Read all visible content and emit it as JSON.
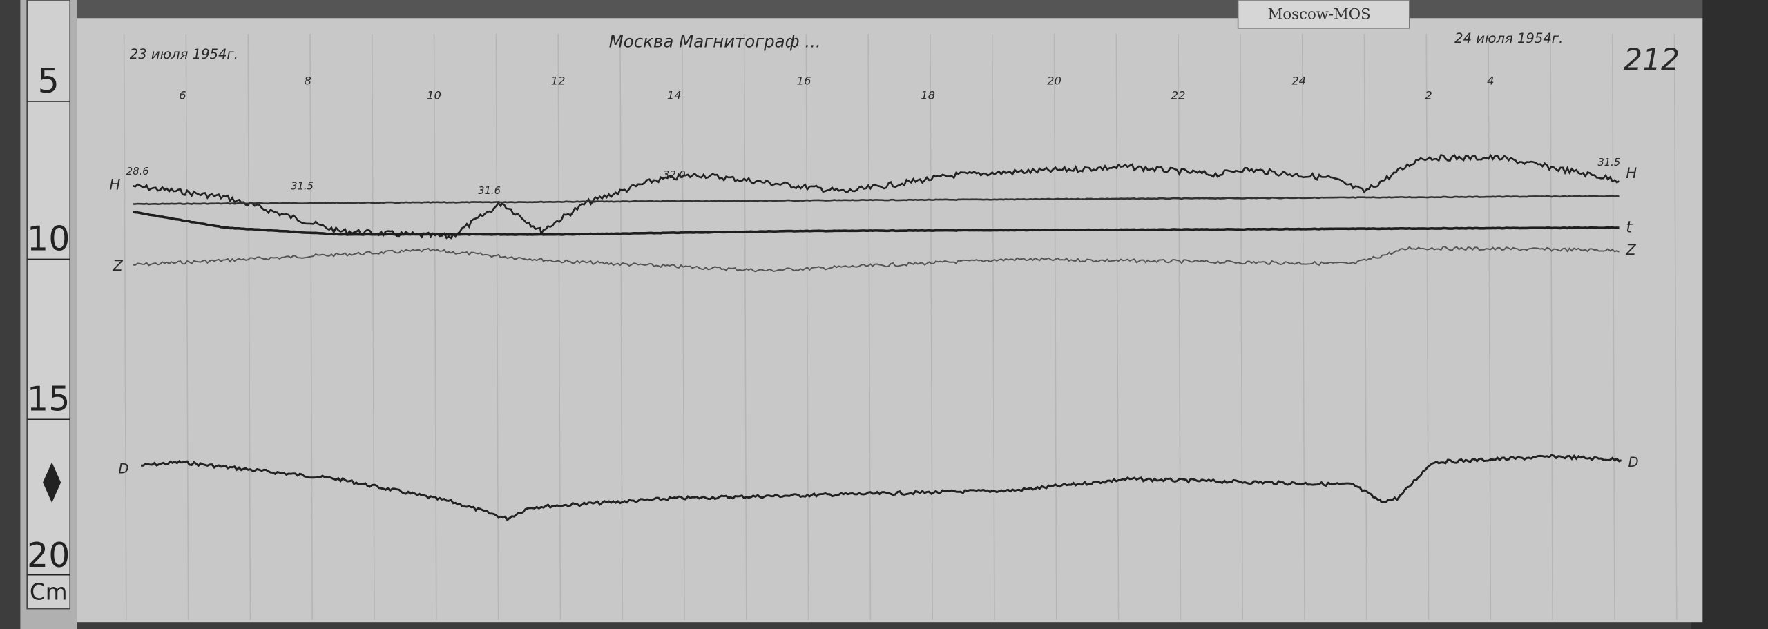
{
  "label_tag": "Moscow-MOS",
  "header": {
    "date_start": "23 июля 1954г.",
    "title": "Москва Магнитограф ...",
    "date_end": "24 июля 1954г.",
    "sheet_number": "212"
  },
  "hour_labels": [
    "6",
    "8",
    "10",
    "12",
    "14",
    "16",
    "18",
    "20",
    "22",
    "24",
    "2",
    "4"
  ],
  "ruler": {
    "marks": [
      "5",
      "10",
      "15",
      "20"
    ],
    "unit": "Cm"
  },
  "trace_labels": {
    "h_left": "H",
    "h_right": "H",
    "t_right": "t",
    "z_left": "Z",
    "z_right": "Z",
    "d_left": "D",
    "d_right": "D"
  },
  "annotations": [
    "28.6",
    "31.5",
    "31.6",
    "32.0",
    "31.5"
  ],
  "colors": {
    "paper": "#c9c9c9",
    "ink": "#222222",
    "background": "#3a3a3a"
  }
}
